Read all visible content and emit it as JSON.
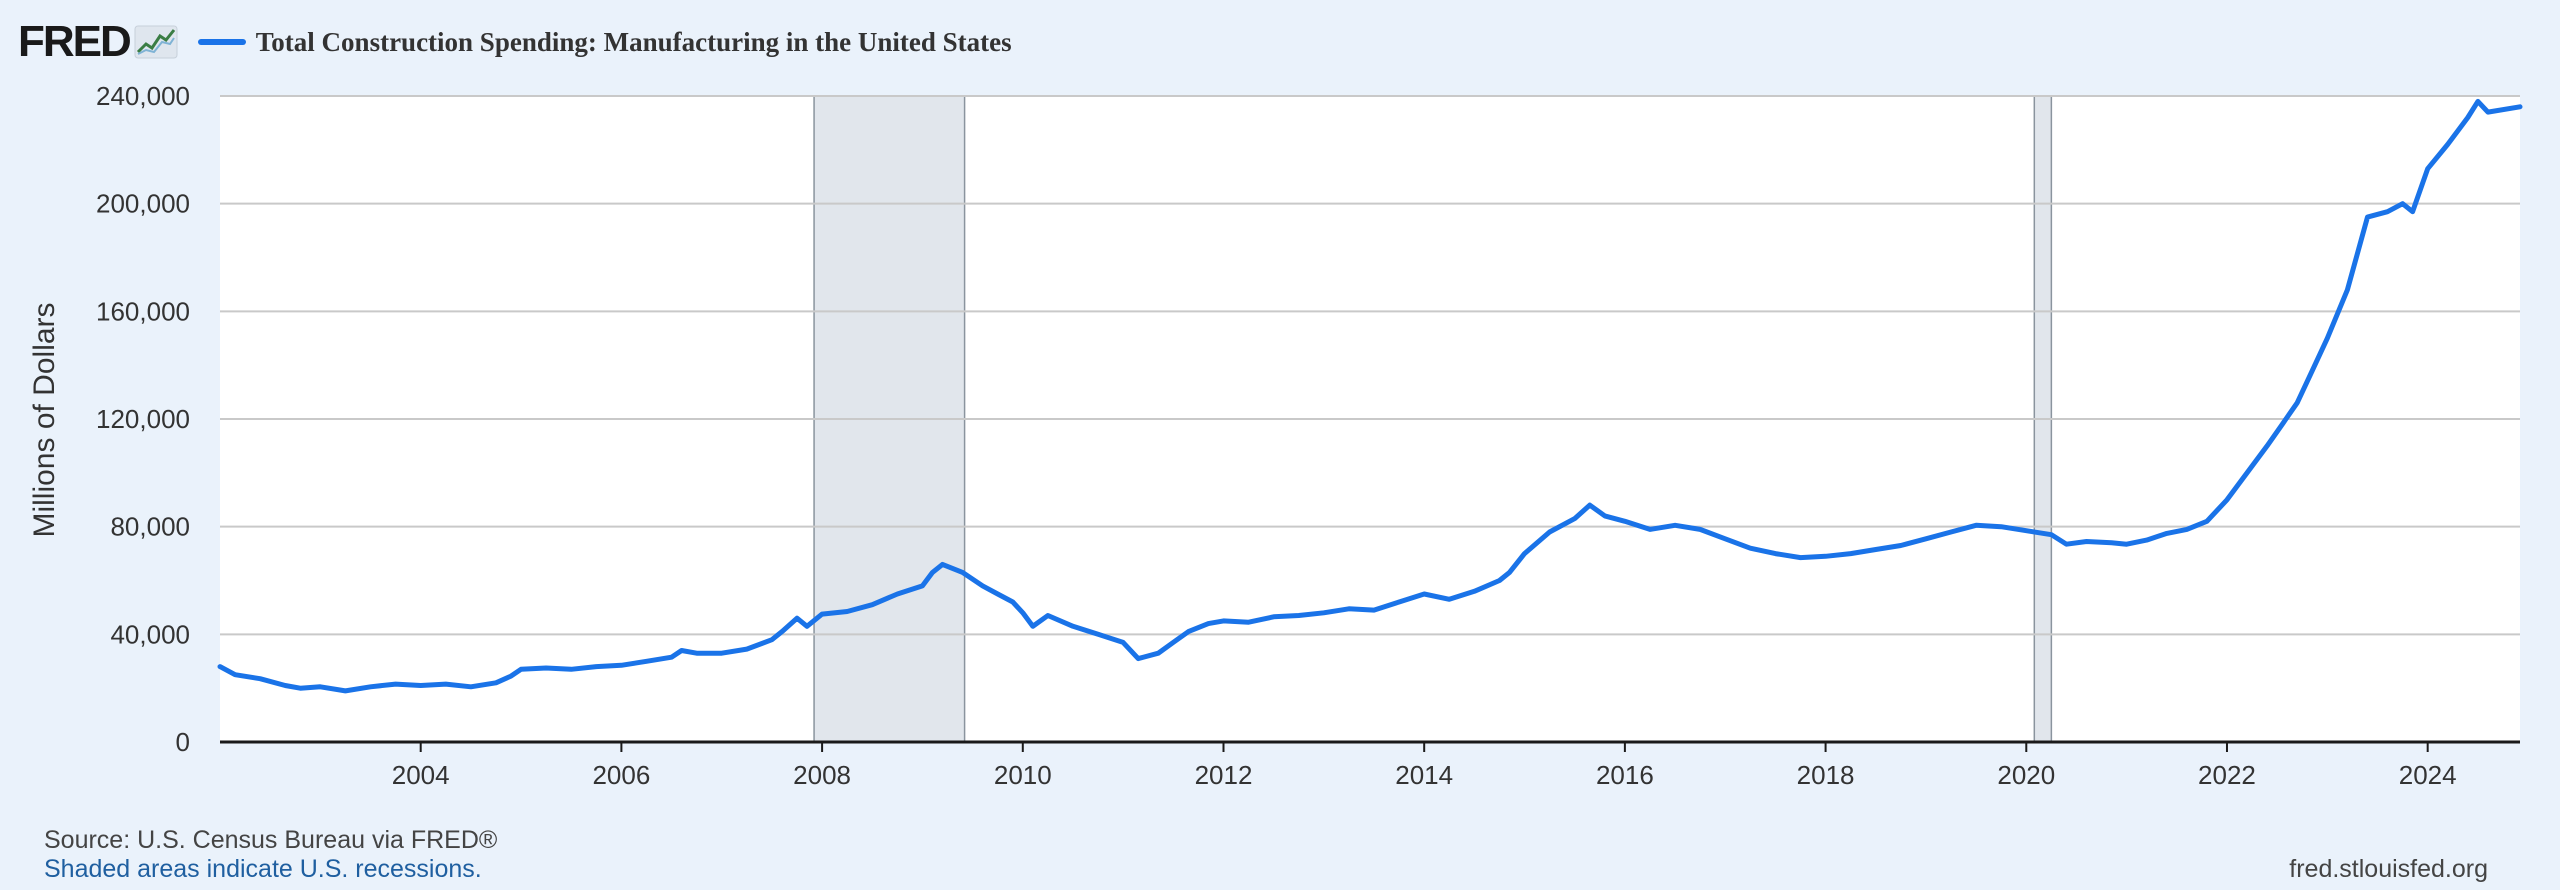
{
  "header": {
    "logo_text": "FRED",
    "logo_icon": "line-graph-icon",
    "legend_label": "Total Construction Spending: Manufacturing in the United States",
    "legend_color": "#1a73e8"
  },
  "chart_data": {
    "type": "line",
    "title": "Total Construction Spending: Manufacturing in the United States",
    "ylabel": "Millions of Dollars",
    "xlabel": "",
    "xlim": [
      2002.0,
      2024.92
    ],
    "ylim": [
      0,
      240000
    ],
    "y_ticks": [
      0,
      40000,
      80000,
      120000,
      160000,
      200000,
      240000
    ],
    "y_tick_labels": [
      "0",
      "40,000",
      "80,000",
      "120,000",
      "160,000",
      "200,000",
      "240,000"
    ],
    "x_ticks": [
      2004,
      2006,
      2008,
      2010,
      2012,
      2014,
      2016,
      2018,
      2020,
      2022,
      2024
    ],
    "x_tick_labels": [
      "2004",
      "2006",
      "2008",
      "2010",
      "2012",
      "2014",
      "2016",
      "2018",
      "2020",
      "2022",
      "2024"
    ],
    "grid": true,
    "line_color": "#1a73e8",
    "recession_color": "#e1e6ec",
    "recessions": [
      {
        "start": 2007.92,
        "end": 2009.42
      },
      {
        "start": 2020.08,
        "end": 2020.25
      }
    ],
    "series": [
      {
        "values": [
          [
            2002.0,
            28000
          ],
          [
            2002.15,
            25000
          ],
          [
            2002.4,
            23500
          ],
          [
            2002.65,
            21000
          ],
          [
            2002.8,
            20000
          ],
          [
            2003.0,
            20500
          ],
          [
            2003.25,
            19000
          ],
          [
            2003.5,
            20500
          ],
          [
            2003.75,
            21500
          ],
          [
            2004.0,
            21000
          ],
          [
            2004.25,
            21500
          ],
          [
            2004.5,
            20500
          ],
          [
            2004.75,
            22000
          ],
          [
            2004.9,
            24500
          ],
          [
            2005.0,
            27000
          ],
          [
            2005.25,
            27500
          ],
          [
            2005.5,
            27000
          ],
          [
            2005.75,
            28000
          ],
          [
            2006.0,
            28500
          ],
          [
            2006.25,
            30000
          ],
          [
            2006.5,
            31500
          ],
          [
            2006.6,
            34000
          ],
          [
            2006.75,
            33000
          ],
          [
            2007.0,
            33000
          ],
          [
            2007.25,
            34500
          ],
          [
            2007.5,
            38000
          ],
          [
            2007.6,
            41000
          ],
          [
            2007.75,
            46000
          ],
          [
            2007.85,
            43000
          ],
          [
            2008.0,
            47500
          ],
          [
            2008.25,
            48500
          ],
          [
            2008.5,
            51000
          ],
          [
            2008.75,
            55000
          ],
          [
            2009.0,
            58000
          ],
          [
            2009.1,
            63000
          ],
          [
            2009.2,
            66000
          ],
          [
            2009.4,
            63000
          ],
          [
            2009.6,
            58000
          ],
          [
            2009.75,
            55000
          ],
          [
            2009.9,
            52000
          ],
          [
            2010.0,
            48000
          ],
          [
            2010.1,
            43000
          ],
          [
            2010.25,
            47000
          ],
          [
            2010.5,
            43000
          ],
          [
            2010.75,
            40000
          ],
          [
            2011.0,
            37000
          ],
          [
            2011.15,
            31000
          ],
          [
            2011.35,
            33000
          ],
          [
            2011.5,
            37000
          ],
          [
            2011.65,
            41000
          ],
          [
            2011.85,
            44000
          ],
          [
            2012.0,
            45000
          ],
          [
            2012.25,
            44500
          ],
          [
            2012.5,
            46500
          ],
          [
            2012.75,
            47000
          ],
          [
            2013.0,
            48000
          ],
          [
            2013.25,
            49500
          ],
          [
            2013.5,
            49000
          ],
          [
            2013.75,
            52000
          ],
          [
            2014.0,
            55000
          ],
          [
            2014.25,
            53000
          ],
          [
            2014.5,
            56000
          ],
          [
            2014.75,
            60000
          ],
          [
            2014.85,
            63000
          ],
          [
            2015.0,
            70000
          ],
          [
            2015.25,
            78000
          ],
          [
            2015.5,
            83000
          ],
          [
            2015.65,
            88000
          ],
          [
            2015.8,
            84000
          ],
          [
            2016.0,
            82000
          ],
          [
            2016.25,
            79000
          ],
          [
            2016.5,
            80500
          ],
          [
            2016.75,
            79000
          ],
          [
            2017.0,
            75500
          ],
          [
            2017.25,
            72000
          ],
          [
            2017.5,
            70000
          ],
          [
            2017.75,
            68500
          ],
          [
            2018.0,
            69000
          ],
          [
            2018.25,
            70000
          ],
          [
            2018.5,
            71500
          ],
          [
            2018.75,
            73000
          ],
          [
            2019.0,
            75500
          ],
          [
            2019.25,
            78000
          ],
          [
            2019.5,
            80500
          ],
          [
            2019.75,
            80000
          ],
          [
            2020.0,
            78500
          ],
          [
            2020.25,
            77000
          ],
          [
            2020.4,
            73500
          ],
          [
            2020.6,
            74500
          ],
          [
            2020.85,
            74000
          ],
          [
            2021.0,
            73500
          ],
          [
            2021.2,
            75000
          ],
          [
            2021.4,
            77500
          ],
          [
            2021.6,
            79000
          ],
          [
            2021.8,
            82000
          ],
          [
            2022.0,
            90000
          ],
          [
            2022.2,
            100000
          ],
          [
            2022.4,
            110000
          ],
          [
            2022.55,
            118000
          ],
          [
            2022.7,
            126000
          ],
          [
            2022.85,
            138000
          ],
          [
            2023.0,
            150000
          ],
          [
            2023.2,
            168000
          ],
          [
            2023.4,
            195000
          ],
          [
            2023.6,
            197000
          ],
          [
            2023.75,
            200000
          ],
          [
            2023.85,
            197000
          ],
          [
            2024.0,
            213000
          ],
          [
            2024.2,
            222000
          ],
          [
            2024.4,
            232000
          ],
          [
            2024.5,
            238000
          ],
          [
            2024.6,
            234000
          ],
          [
            2024.92,
            236000
          ]
        ]
      }
    ]
  },
  "footer": {
    "source": "Source: U.S. Census Bureau via FRED®",
    "note": "Shaded areas indicate U.S. recessions.",
    "url": "fred.stlouisfed.org"
  }
}
